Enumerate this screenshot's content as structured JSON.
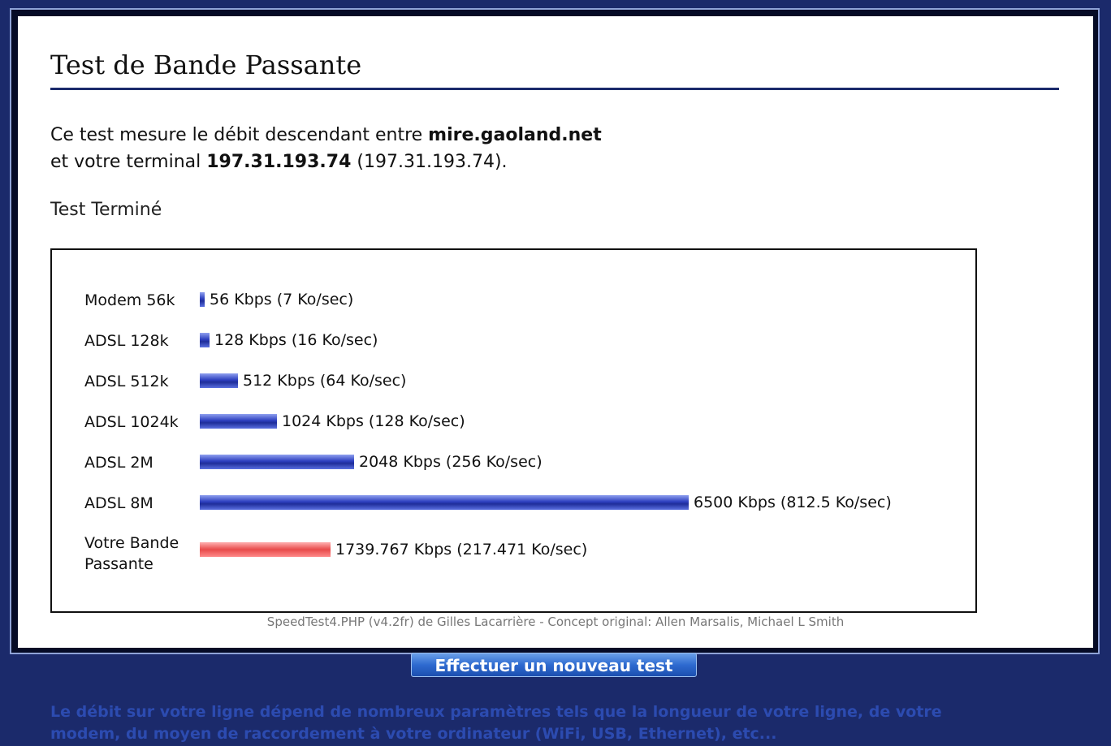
{
  "page": {
    "title": "Test de Bande Passante",
    "desc_line1_prefix": "Ce test mesure le débit descendant entre ",
    "server": "mire.gaoland.net",
    "desc_line2_prefix": "et votre terminal ",
    "client_host": "197.31.193.74",
    "client_ip": "(197.31.193.74).",
    "status": "Test Terminé"
  },
  "chart_data": {
    "type": "bar",
    "orientation": "horizontal",
    "unit": "Kbps",
    "xlim": [
      0,
      6500
    ],
    "categories": [
      "Modem 56k",
      "ADSL 128k",
      "ADSL 512k",
      "ADSL 1024k",
      "ADSL 2M",
      "ADSL 8M",
      "Votre Bande Passante"
    ],
    "values": [
      56,
      128,
      512,
      1024,
      2048,
      6500,
      1739.767
    ],
    "value_labels": [
      "56 Kbps (7 Ko/sec)",
      "128 Kbps (16 Ko/sec)",
      "512 Kbps (64 Ko/sec)",
      "1024 Kbps (128 Ko/sec)",
      "2048 Kbps (256 Ko/sec)",
      "6500 Kbps (812.5 Ko/sec)",
      "1739.767 Kbps (217.471 Ko/sec)"
    ],
    "highlight_index": 6,
    "colors": {
      "reference": "#2d3fbf",
      "user": "#e84a4a"
    }
  },
  "credit": "SpeedTest4.PHP (v4.2fr) de Gilles Lacarrière - Concept original: Allen Marsalis, Michael L Smith",
  "button": {
    "label": "Effectuer un nouveau test"
  },
  "footer_note": "Le débit sur votre ligne dépend de nombreux paramètres tels que la longueur de votre ligne, de votre modem, du moyen de raccordement à votre ordinateur (WiFi, USB, Ethernet), etc..."
}
